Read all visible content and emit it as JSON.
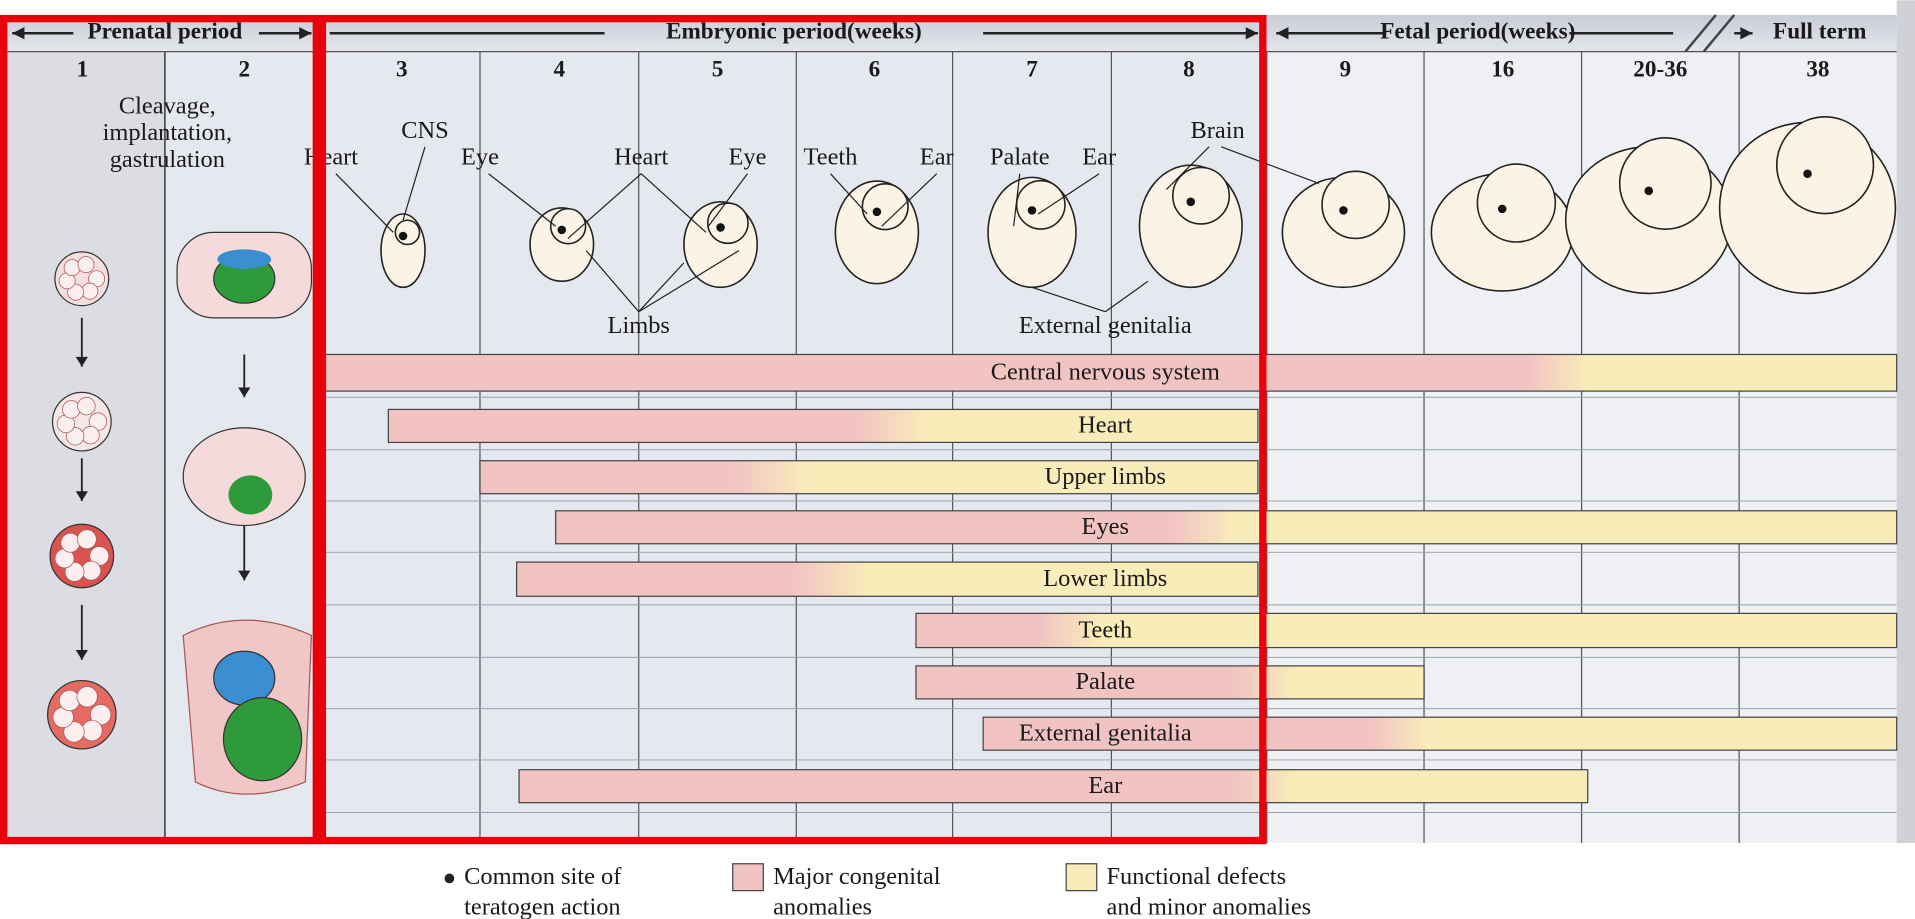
{
  "header": {
    "periods": [
      "Prenatal period",
      "Embryonic period(weeks)",
      "Fetal period(weeks)",
      "Full term"
    ]
  },
  "weeks": [
    "1",
    "2",
    "3",
    "4",
    "5",
    "6",
    "7",
    "8",
    "9",
    "16",
    "20-36",
    "38"
  ],
  "prenatal_note": [
    "Cleavage,",
    "implantation,",
    "gastrulation"
  ],
  "organ_labels": [
    "CNS",
    "Heart",
    "Eye",
    "Heart",
    "Eye",
    "Teeth",
    "Ear",
    "Palate",
    "Ear",
    "Brain",
    "Limbs",
    "External genitalia"
  ],
  "bars": [
    "Central nervous system",
    "Heart",
    "Upper limbs",
    "Eyes",
    "Lower limbs",
    "Teeth",
    "Palate",
    "External genitalia",
    "Ear"
  ],
  "legend": [
    {
      "lines": [
        "Common site of",
        "teratogen action"
      ]
    },
    {
      "lines": [
        "Major congenital",
        "anomalies"
      ]
    },
    {
      "lines": [
        "Functional defects",
        "and minor anomalies"
      ]
    }
  ]
}
